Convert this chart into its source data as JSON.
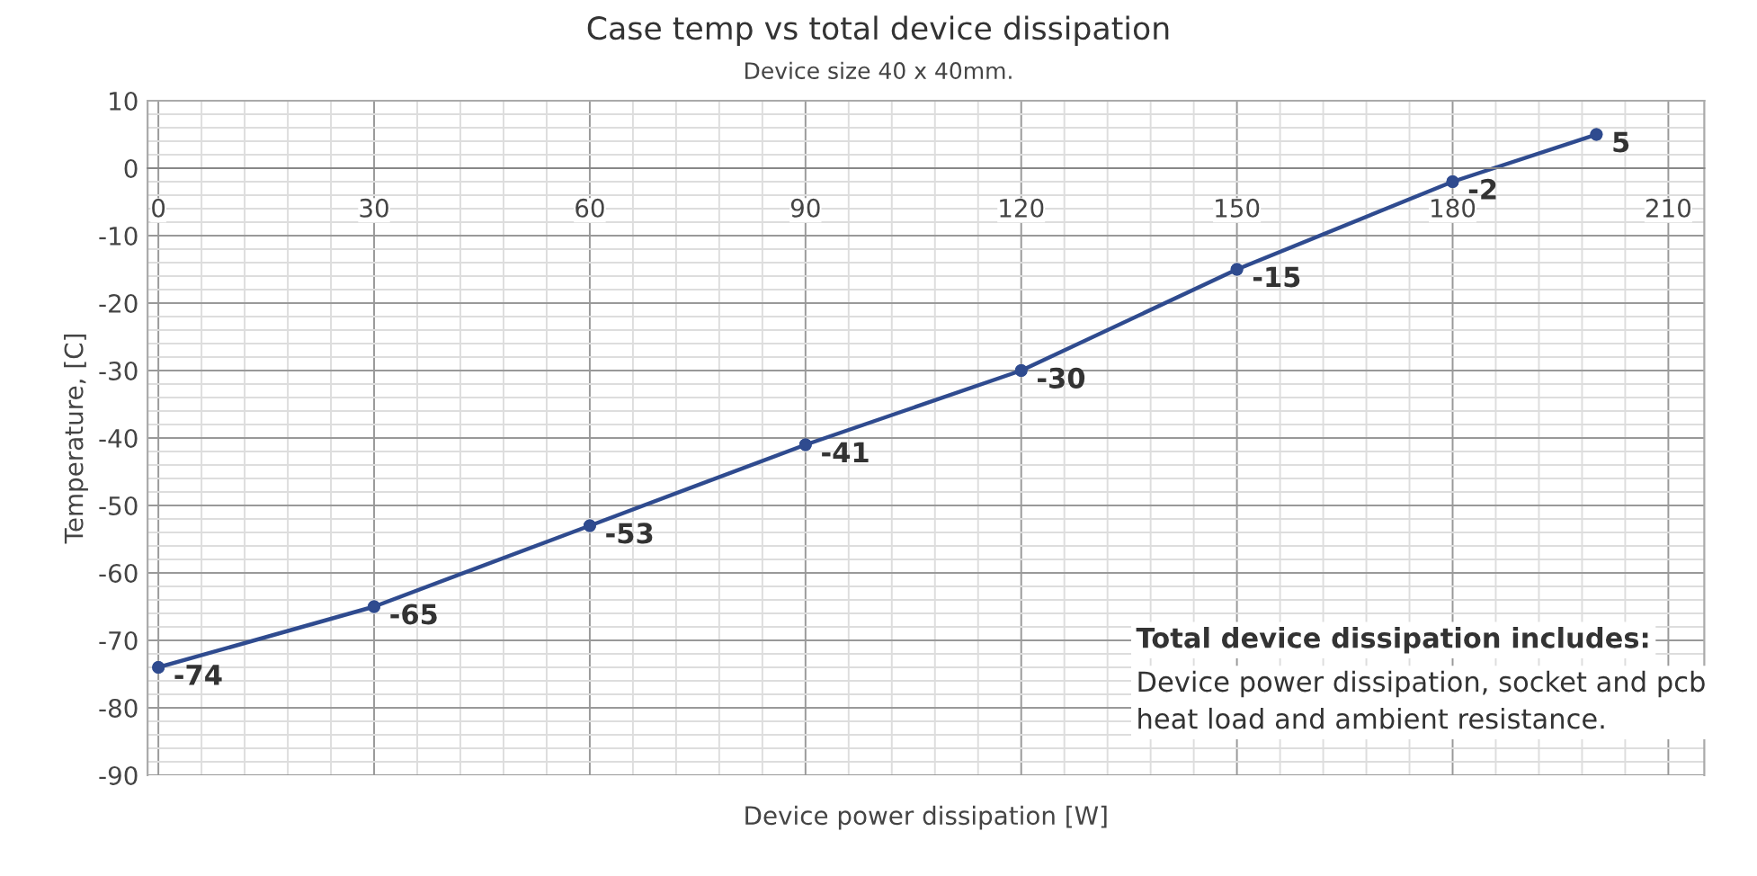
{
  "chart_data": {
    "type": "line",
    "title": "Case temp vs total device dissipation",
    "subtitle": "Device size 40 x 40mm.",
    "xlabel": "Device power dissipation [W]",
    "ylabel": "Temperature, [C]",
    "x": [
      0,
      30,
      60,
      90,
      120,
      150,
      180,
      200
    ],
    "series": [
      {
        "color": "#2f4b8f",
        "values": [
          -74,
          -65,
          -53,
          -41,
          -30,
          -15,
          -2,
          5
        ]
      }
    ],
    "xlim": [
      -1.5,
      215
    ],
    "xticks": [
      0,
      30,
      60,
      90,
      120,
      150,
      180,
      210
    ],
    "ylim": [
      -90,
      10
    ],
    "yticks": [
      10,
      0,
      -10,
      -20,
      -30,
      -40,
      -50,
      -60,
      -70,
      -80,
      -90
    ],
    "grid": true,
    "marker": "circle",
    "line_style": "solid",
    "data_labels": true,
    "annotations": [
      "Total device dissipation includes:",
      "Device power dissipation, socket and pcb\nheat load and ambient resistance."
    ]
  }
}
